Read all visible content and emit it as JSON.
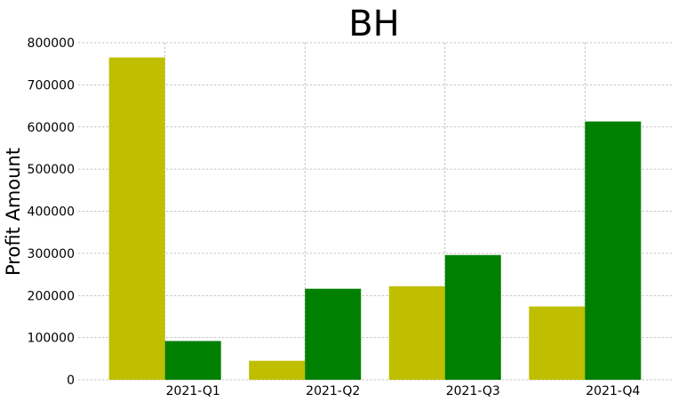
{
  "chart_data": {
    "type": "bar",
    "title": "BH",
    "xlabel": "",
    "ylabel": "Profit Amount",
    "categories": [
      "2021-Q1",
      "2021-Q2",
      "2021-Q3",
      "2021-Q4"
    ],
    "series": [
      {
        "color": "#bfbf00",
        "values": [
          765000,
          45000,
          222000,
          174000
        ]
      },
      {
        "color": "#008000",
        "values": [
          92000,
          216000,
          296000,
          613000
        ]
      }
    ],
    "ylim": [
      0,
      800000
    ],
    "yticks": [
      0,
      100000,
      200000,
      300000,
      400000,
      500000,
      600000,
      700000,
      800000
    ],
    "grid": true,
    "legend": "none"
  }
}
